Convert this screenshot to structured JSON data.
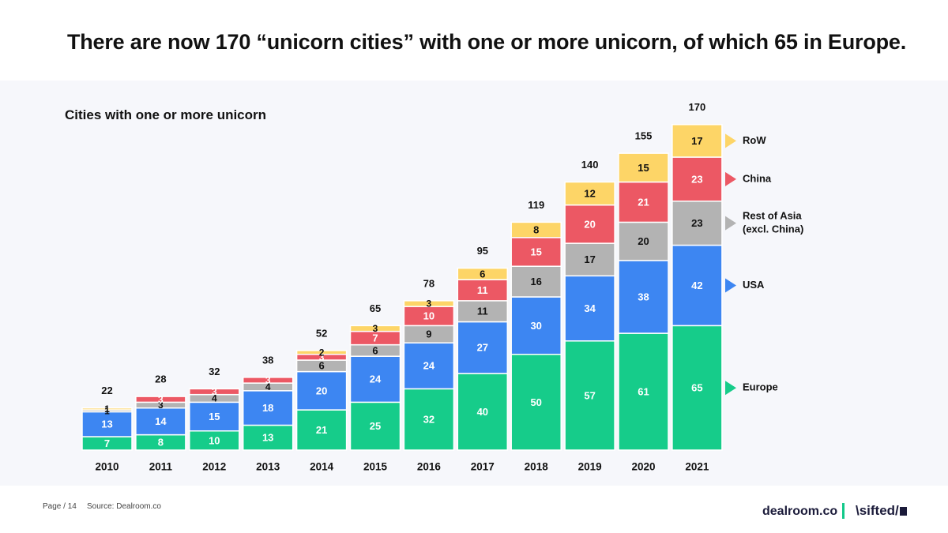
{
  "headline": "There are now 170 “unicorn cities” with one or more unicorn, of which 65 in Europe.",
  "footer": {
    "page": "Page / 14",
    "source": "Source: Dealroom.co",
    "brand_primary": "dealroom.co",
    "brand_secondary": "\\sifted/"
  },
  "chart_data": {
    "type": "bar",
    "stacked": true,
    "title": "Cities with one or more unicorn",
    "xlabel": "",
    "ylabel": "",
    "categories": [
      "2010",
      "2011",
      "2012",
      "2013",
      "2014",
      "2015",
      "2016",
      "2017",
      "2018",
      "2019",
      "2020",
      "2021"
    ],
    "totals": [
      22,
      28,
      32,
      38,
      52,
      65,
      78,
      95,
      119,
      140,
      155,
      170
    ],
    "series": [
      {
        "name": "Europe",
        "color": "#16cc8a",
        "values": [
          7,
          8,
          10,
          13,
          21,
          25,
          32,
          40,
          50,
          57,
          61,
          65
        ]
      },
      {
        "name": "USA",
        "color": "#3d86f2",
        "values": [
          13,
          14,
          15,
          18,
          20,
          24,
          24,
          27,
          30,
          34,
          38,
          42
        ]
      },
      {
        "name": "Rest of Asia (excl. China)",
        "color": "#b3b3b3",
        "values": [
          1,
          3,
          4,
          4,
          6,
          6,
          9,
          11,
          16,
          17,
          20,
          23
        ]
      },
      {
        "name": "China",
        "color": "#ec5864",
        "values": [
          0,
          3,
          3,
          3,
          3,
          7,
          10,
          11,
          15,
          20,
          21,
          23
        ]
      },
      {
        "name": "RoW",
        "color": "#fdd567",
        "values": [
          1,
          0,
          0,
          0,
          2,
          3,
          3,
          6,
          8,
          12,
          15,
          17
        ]
      }
    ],
    "legend": [
      {
        "label_lines": [
          "RoW"
        ],
        "color": "#fdd567"
      },
      {
        "label_lines": [
          "China"
        ],
        "color": "#ec5864"
      },
      {
        "label_lines": [
          "Rest of Asia",
          "(excl. China)"
        ],
        "color": "#b3b3b3"
      },
      {
        "label_lines": [
          "USA"
        ],
        "color": "#3d86f2"
      },
      {
        "label_lines": [
          "Europe"
        ],
        "color": "#16cc8a"
      }
    ],
    "legend_position": "right",
    "grid": false
  }
}
